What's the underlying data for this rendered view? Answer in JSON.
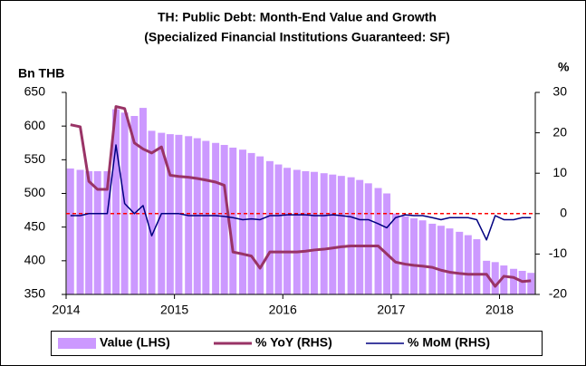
{
  "chart_data": {
    "type": "combo",
    "title": "TH: Public Debt: Month-End Value and Growth",
    "subtitle": "(Specialized Financial Institutions Guaranteed: SF)",
    "y_label": "Bn THB",
    "y2_label": "%",
    "x": [
      2014.04,
      2014.13,
      2014.21,
      2014.29,
      2014.38,
      2014.46,
      2014.54,
      2014.63,
      2014.71,
      2014.79,
      2014.88,
      2014.96,
      2015.04,
      2015.13,
      2015.21,
      2015.29,
      2015.38,
      2015.46,
      2015.54,
      2015.63,
      2015.71,
      2015.79,
      2015.88,
      2015.96,
      2016.04,
      2016.13,
      2016.21,
      2016.29,
      2016.38,
      2016.46,
      2016.54,
      2016.63,
      2016.71,
      2016.79,
      2016.88,
      2016.96,
      2017.04,
      2017.13,
      2017.21,
      2017.29,
      2017.38,
      2017.46,
      2017.54,
      2017.63,
      2017.71,
      2017.79,
      2017.88,
      2017.96,
      2018.04,
      2018.13,
      2018.21,
      2018.29
    ],
    "xlim": [
      2014,
      2018.33
    ],
    "xticks": [
      2014,
      2015,
      2016,
      2017,
      2018
    ],
    "ylim": [
      350,
      650
    ],
    "yticks": [
      350,
      400,
      450,
      500,
      550,
      600,
      650
    ],
    "y2lim": [
      -20,
      30
    ],
    "y2ticks": [
      -20,
      -10,
      0,
      10,
      20,
      30
    ],
    "reference_line": {
      "y2": 0,
      "color": "#ff0000"
    },
    "series": [
      {
        "name": "Value (LHS)",
        "type": "bar",
        "axis": "y",
        "color": "#cc99ff",
        "values": [
          537,
          535,
          533,
          533,
          533,
          625,
          620,
          615,
          627,
          593,
          590,
          588,
          587,
          585,
          582,
          578,
          575,
          572,
          568,
          565,
          560,
          555,
          548,
          543,
          538,
          535,
          533,
          532,
          530,
          528,
          526,
          524,
          520,
          515,
          508,
          500,
          470,
          466,
          463,
          460,
          455,
          452,
          448,
          443,
          438,
          432,
          400,
          398,
          393,
          388,
          385,
          382
        ]
      },
      {
        "name": "% YoY (RHS)",
        "type": "line",
        "axis": "y2",
        "color": "#993366",
        "width": 3,
        "values": [
          22,
          21.5,
          8,
          6,
          6,
          26.5,
          26,
          17.5,
          16,
          15,
          16.5,
          9.5,
          9.2,
          9,
          8.7,
          8.3,
          7.8,
          7,
          -9.5,
          -10,
          -10.5,
          -13.5,
          -9.5,
          -9.5,
          -9.5,
          -9.5,
          -9.3,
          -9,
          -8.8,
          -8.5,
          -8.2,
          -8,
          -8,
          -8,
          -8,
          -10,
          -12,
          -12.5,
          -12.8,
          -13,
          -13.3,
          -14,
          -14.5,
          -14.8,
          -15,
          -15,
          -15,
          -18,
          -15.5,
          -15.8,
          -16.8,
          -16.6
        ]
      },
      {
        "name": "% MoM (RHS)",
        "type": "line",
        "axis": "y2",
        "color": "#000080",
        "width": 1.5,
        "values": [
          -0.5,
          -0.5,
          0,
          0,
          0,
          17,
          2.5,
          0,
          2,
          -5.5,
          0,
          0,
          0,
          -0.5,
          -0.5,
          -0.5,
          -0.5,
          -0.7,
          -1,
          -1.5,
          -1.3,
          -1.5,
          -0.5,
          -0.5,
          -0.3,
          -0.3,
          -0.3,
          -0.5,
          -0.5,
          -0.3,
          -0.5,
          -0.8,
          -1.5,
          -1.5,
          -2.5,
          -3.5,
          -1,
          -0.3,
          -0.5,
          -0.5,
          -1,
          -1.5,
          -1,
          -1,
          -1,
          -1.5,
          -6.5,
          -0.5,
          -1.5,
          -1.5,
          -1,
          -1
        ]
      }
    ]
  }
}
